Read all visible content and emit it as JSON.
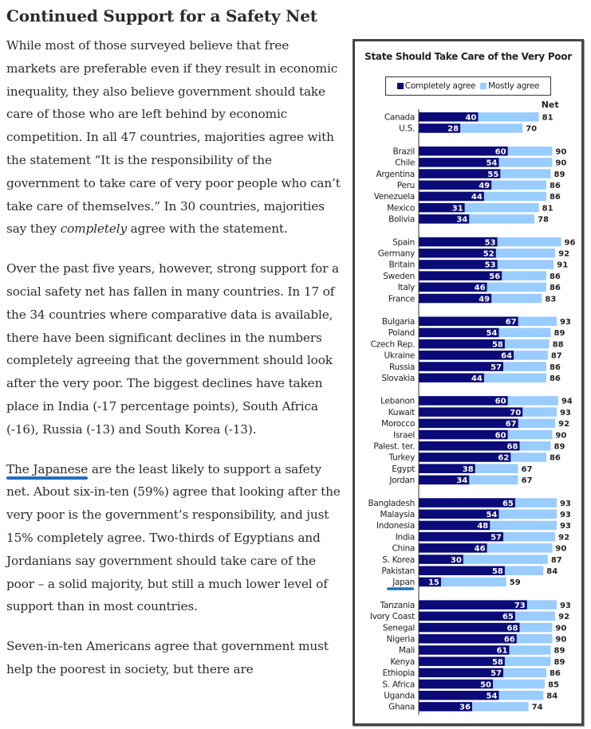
{
  "article": {
    "heading": "Continued Support for a Safety Net",
    "paragraphs": [
      {
        "before": "While most of those surveyed believe that free markets are preferable even if they result in economic inequality, they also believe government should take care of those who are left behind by economic competition. In all 47 countries, majorities agree with the statement “It is the responsibility of the government to take care of very poor people who can’t take care of themselves.” In 30 countries, majorities say they ",
        "em": "completely",
        "after": " agree with the statement."
      },
      {
        "text": "Over the past five years, however, strong support for a social safety net has fallen in many countries. In 17 of the 34 countries where comparative data is available, there have been significant declines in the numbers completely agreeing that the government should look after the very poor. The biggest declines have taken place in India (-17 percentage points), South Africa (-16), Russia (-13) and South Korea (-13)."
      },
      {
        "highlight": "The Japanese",
        "after": " are the least likely to support a safety net. About six-in-ten (59%) agree that looking after the very poor is the government’s responsibility, and just 15% completely agree. Two-thirds of Egyptians and Jordanians say government should take care of the poor – a solid majority, but still a much lower level of support than in most countries."
      },
      {
        "text": "Seven-in-ten Americans agree that government must help the poorest in society, but there are"
      }
    ]
  },
  "chart_data": {
    "type": "bar",
    "stacked": true,
    "orientation": "horizontal",
    "title": "State Should Take Care of the Very Poor",
    "net_label": "Net",
    "legend": [
      {
        "name": "Completely agree",
        "color": "#0a0a78"
      },
      {
        "name": "Mostly agree",
        "color": "#99ccff"
      }
    ],
    "legend_position": "top",
    "xlim": [
      0,
      100
    ],
    "highlighted_country": "Japan",
    "groups": [
      {
        "rows": [
          {
            "country": "Canada",
            "completely": 40,
            "net": 81
          },
          {
            "country": "U.S.",
            "completely": 28,
            "net": 70
          }
        ]
      },
      {
        "rows": [
          {
            "country": "Brazil",
            "completely": 60,
            "net": 90
          },
          {
            "country": "Chile",
            "completely": 54,
            "net": 90
          },
          {
            "country": "Argentina",
            "completely": 55,
            "net": 89
          },
          {
            "country": "Peru",
            "completely": 49,
            "net": 86
          },
          {
            "country": "Venezuela",
            "completely": 44,
            "net": 86
          },
          {
            "country": "Mexico",
            "completely": 31,
            "net": 81
          },
          {
            "country": "Bolivia",
            "completely": 34,
            "net": 78
          }
        ]
      },
      {
        "rows": [
          {
            "country": "Spain",
            "completely": 53,
            "net": 96
          },
          {
            "country": "Germany",
            "completely": 52,
            "net": 92
          },
          {
            "country": "Britain",
            "completely": 53,
            "net": 91
          },
          {
            "country": "Sweden",
            "completely": 56,
            "net": 86
          },
          {
            "country": "Italy",
            "completely": 46,
            "net": 86
          },
          {
            "country": "France",
            "completely": 49,
            "net": 83
          }
        ]
      },
      {
        "rows": [
          {
            "country": "Bulgaria",
            "completely": 67,
            "net": 93
          },
          {
            "country": "Poland",
            "completely": 54,
            "net": 89
          },
          {
            "country": "Czech Rep.",
            "completely": 58,
            "net": 88
          },
          {
            "country": "Ukraine",
            "completely": 64,
            "net": 87
          },
          {
            "country": "Russia",
            "completely": 57,
            "net": 86
          },
          {
            "country": "Slovakia",
            "completely": 44,
            "net": 86
          }
        ]
      },
      {
        "rows": [
          {
            "country": "Lebanon",
            "completely": 60,
            "net": 94
          },
          {
            "country": "Kuwait",
            "completely": 70,
            "net": 93
          },
          {
            "country": "Morocco",
            "completely": 67,
            "net": 92
          },
          {
            "country": "Israel",
            "completely": 60,
            "net": 90
          },
          {
            "country": "Palest. ter.",
            "completely": 68,
            "net": 89
          },
          {
            "country": "Turkey",
            "completely": 62,
            "net": 86
          },
          {
            "country": "Egypt",
            "completely": 38,
            "net": 67
          },
          {
            "country": "Jordan",
            "completely": 34,
            "net": 67
          }
        ]
      },
      {
        "rows": [
          {
            "country": "Bangladesh",
            "completely": 65,
            "net": 93
          },
          {
            "country": "Malaysia",
            "completely": 54,
            "net": 93
          },
          {
            "country": "Indonesia",
            "completely": 48,
            "net": 93
          },
          {
            "country": "India",
            "completely": 57,
            "net": 92
          },
          {
            "country": "China",
            "completely": 46,
            "net": 90
          },
          {
            "country": "S. Korea",
            "completely": 30,
            "net": 87
          },
          {
            "country": "Pakistan",
            "completely": 58,
            "net": 84
          },
          {
            "country": "Japan",
            "completely": 15,
            "net": 59
          }
        ]
      },
      {
        "rows": [
          {
            "country": "Tanzania",
            "completely": 73,
            "net": 93
          },
          {
            "country": "Ivory Coast",
            "completely": 65,
            "net": 92
          },
          {
            "country": "Senegal",
            "completely": 68,
            "net": 90
          },
          {
            "country": "Nigeria",
            "completely": 66,
            "net": 90
          },
          {
            "country": "Mali",
            "completely": 61,
            "net": 89
          },
          {
            "country": "Kenya",
            "completely": 58,
            "net": 89
          },
          {
            "country": "Ethiopia",
            "completely": 57,
            "net": 86
          },
          {
            "country": "S. Africa",
            "completely": 50,
            "net": 85
          },
          {
            "country": "Uganda",
            "completely": 54,
            "net": 84
          },
          {
            "country": "Ghana",
            "completely": 36,
            "net": 74
          }
        ]
      }
    ]
  }
}
